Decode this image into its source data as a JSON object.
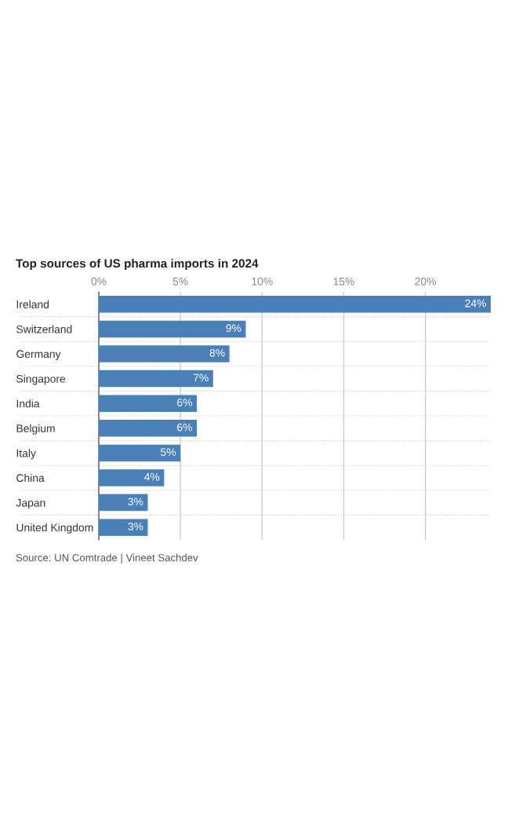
{
  "chart_data": {
    "type": "bar",
    "orientation": "horizontal",
    "title": "Top sources of US pharma imports in 2024",
    "categories": [
      "Ireland",
      "Switzerland",
      "Germany",
      "Singapore",
      "India",
      "Belgium",
      "Italy",
      "China",
      "Japan",
      "United Kingdom"
    ],
    "values": [
      24,
      9,
      8,
      7,
      6,
      6,
      5,
      4,
      3,
      3
    ],
    "value_labels": [
      "24%",
      "9%",
      "8%",
      "7%",
      "6%",
      "6%",
      "5%",
      "4%",
      "3%",
      "3%"
    ],
    "color": "#4a7fb8",
    "xlim": [
      0,
      24
    ],
    "xticks": [
      {
        "value": 0,
        "label": "0%"
      },
      {
        "value": 5,
        "label": "5%"
      },
      {
        "value": 10,
        "label": "10%"
      },
      {
        "value": 15,
        "label": "15%"
      },
      {
        "value": 20,
        "label": "20%"
      }
    ],
    "grid": "x",
    "legend": false,
    "annotations": [
      "Source: UN Comtrade | Vineet Sachdev"
    ]
  }
}
